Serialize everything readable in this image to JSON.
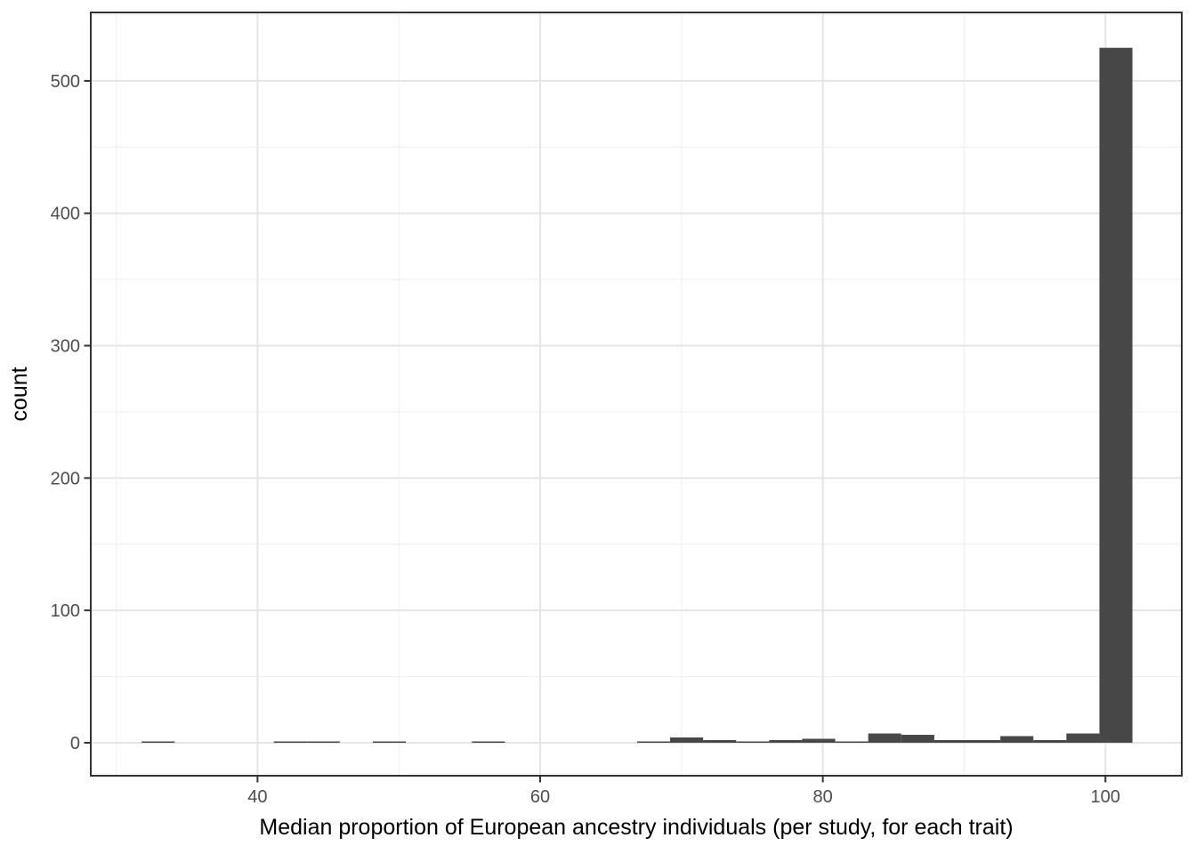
{
  "chart_data": {
    "type": "bar",
    "subtype": "histogram",
    "title": "",
    "xlabel": "Median proportion of European ancestry individuals (per study, for each trait)",
    "ylabel": "count",
    "bin_start": 31.8,
    "bin_width": 2.337,
    "counts": [
      1,
      0,
      0,
      0,
      1,
      1,
      0,
      1,
      0,
      0,
      1,
      0,
      0,
      0,
      0,
      1,
      4,
      2,
      1,
      2,
      3,
      1,
      7,
      6,
      2,
      2,
      5,
      2,
      7,
      525
    ],
    "x_ticks": [
      40,
      60,
      80,
      100
    ],
    "x_tick_labels": [
      "40",
      "60",
      "80",
      "100"
    ],
    "x_minor_ticks": [
      30,
      50,
      70,
      90
    ],
    "y_ticks": [
      0,
      100,
      200,
      300,
      400,
      500
    ],
    "y_tick_labels": [
      "0",
      "100",
      "200",
      "300",
      "400",
      "500"
    ],
    "y_minor_ticks": [
      50,
      150,
      250,
      350,
      450,
      550
    ],
    "xlim": [
      28.2,
      105.4
    ],
    "ylim": [
      -24.9,
      551.7
    ],
    "grid": true,
    "legend": "none",
    "colors": {
      "bar_fill": "#474747",
      "panel_border": "#333333",
      "grid_major": "#E5E5E5",
      "grid_minor": "#F1F1F1",
      "tick_mark": "#333333",
      "tick_label": "#4D4D4D",
      "axis_title": "#000000",
      "background": "#FFFFFF"
    }
  }
}
